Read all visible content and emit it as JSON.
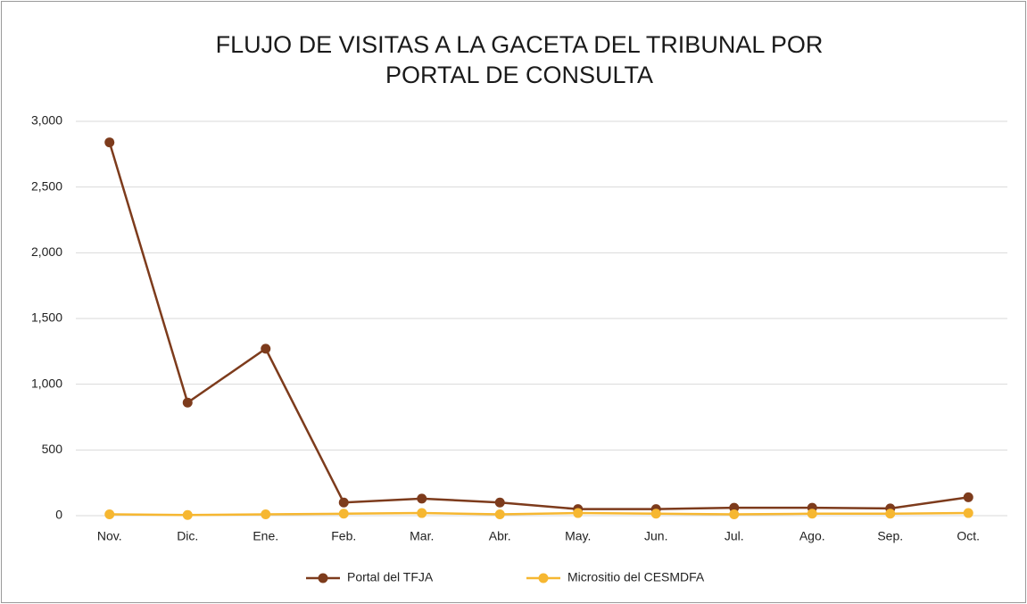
{
  "chart_data": {
    "type": "line",
    "title": [
      "FLUJO DE VISITAS A LA GACETA DEL TRIBUNAL POR",
      "PORTAL DE CONSULTA"
    ],
    "categories": [
      "Nov.",
      "Dic.",
      "Ene.",
      "Feb.",
      "Mar.",
      "Abr.",
      "May.",
      "Jun.",
      "Jul.",
      "Ago.",
      "Sep.",
      "Oct."
    ],
    "series": [
      {
        "name": "Portal del TFJA",
        "color": "#7d3b1c",
        "values": [
          2840,
          860,
          1270,
          100,
          130,
          100,
          50,
          50,
          60,
          60,
          55,
          140
        ]
      },
      {
        "name": "Micrositio del CESMDFA",
        "color": "#f6b731",
        "values": [
          10,
          5,
          10,
          15,
          20,
          10,
          20,
          15,
          10,
          15,
          15,
          20
        ]
      }
    ],
    "ylim": [
      0,
      3000
    ],
    "yticks": [
      0,
      500,
      {
        "value": 1000,
        "label": "1,000"
      },
      {
        "value": 1500,
        "label": "1,500"
      },
      {
        "value": 2000,
        "label": "2,000"
      },
      {
        "value": 2500,
        "label": "2,500"
      },
      {
        "value": 3000,
        "label": "3,000"
      }
    ],
    "grid": true,
    "legend": "bottom"
  }
}
